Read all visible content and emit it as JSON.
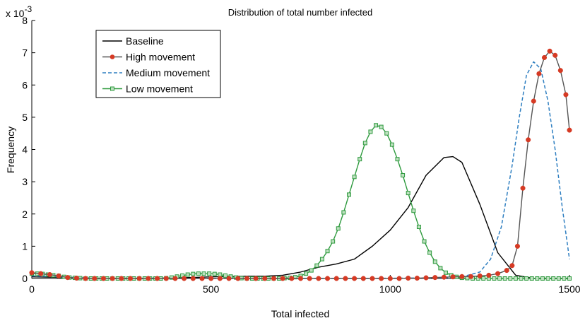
{
  "chart_data": {
    "type": "line",
    "title": "Distribution of total number infected",
    "xlabel": "Total infected",
    "ylabel": "Frequency",
    "y_multiplier_label": "x 10",
    "y_multiplier_exponent": "-3",
    "xlim": [
      0,
      1500
    ],
    "ylim": [
      0,
      8
    ],
    "xticks": [
      0,
      500,
      1000,
      1500
    ],
    "yticks": [
      0,
      1,
      2,
      3,
      4,
      5,
      6,
      7,
      8
    ],
    "grid": false,
    "legend_position": "top-left",
    "series": [
      {
        "name": "Baseline",
        "color": "#000000",
        "style": "solid",
        "marker": "none",
        "points": [
          [
            0,
            0.05
          ],
          [
            50,
            0.04
          ],
          [
            100,
            0.03
          ],
          [
            150,
            0.01
          ],
          [
            200,
            0.0
          ],
          [
            300,
            0.0
          ],
          [
            400,
            0.02
          ],
          [
            450,
            0.03
          ],
          [
            500,
            0.05
          ],
          [
            550,
            0.06
          ],
          [
            600,
            0.07
          ],
          [
            650,
            0.07
          ],
          [
            700,
            0.1
          ],
          [
            750,
            0.2
          ],
          [
            800,
            0.35
          ],
          [
            850,
            0.45
          ],
          [
            900,
            0.6
          ],
          [
            950,
            1.0
          ],
          [
            1000,
            1.5
          ],
          [
            1050,
            2.2
          ],
          [
            1100,
            3.2
          ],
          [
            1150,
            3.75
          ],
          [
            1175,
            3.78
          ],
          [
            1200,
            3.6
          ],
          [
            1250,
            2.3
          ],
          [
            1300,
            0.8
          ],
          [
            1350,
            0.1
          ],
          [
            1400,
            0.0
          ],
          [
            1500,
            0.0
          ]
        ]
      },
      {
        "name": "High movement",
        "color": "#d63a24",
        "line_color": "#555555",
        "style": "solid",
        "marker": "circle",
        "points": [
          [
            0,
            0.18
          ],
          [
            25,
            0.15
          ],
          [
            50,
            0.12
          ],
          [
            75,
            0.08
          ],
          [
            100,
            0.03
          ],
          [
            125,
            0.01
          ],
          [
            150,
            0.0
          ],
          [
            175,
            0.0
          ],
          [
            200,
            0.0
          ],
          [
            225,
            0.0
          ],
          [
            250,
            0.0
          ],
          [
            275,
            0.0
          ],
          [
            300,
            0.0
          ],
          [
            325,
            0.0
          ],
          [
            350,
            0.0
          ],
          [
            375,
            0.0
          ],
          [
            400,
            0.0
          ],
          [
            425,
            0.0
          ],
          [
            450,
            0.0
          ],
          [
            475,
            0.0
          ],
          [
            500,
            0.0
          ],
          [
            525,
            0.0
          ],
          [
            550,
            0.0
          ],
          [
            575,
            0.0
          ],
          [
            600,
            0.0
          ],
          [
            625,
            0.0
          ],
          [
            650,
            0.0
          ],
          [
            675,
            0.0
          ],
          [
            700,
            0.0
          ],
          [
            725,
            0.0
          ],
          [
            750,
            0.0
          ],
          [
            775,
            0.0
          ],
          [
            800,
            0.0
          ],
          [
            825,
            0.0
          ],
          [
            850,
            0.0
          ],
          [
            875,
            0.0
          ],
          [
            900,
            0.0
          ],
          [
            925,
            0.0
          ],
          [
            950,
            0.0
          ],
          [
            975,
            0.0
          ],
          [
            1000,
            0.0
          ],
          [
            1025,
            0.0
          ],
          [
            1050,
            0.01
          ],
          [
            1075,
            0.01
          ],
          [
            1100,
            0.02
          ],
          [
            1125,
            0.03
          ],
          [
            1150,
            0.04
          ],
          [
            1175,
            0.05
          ],
          [
            1200,
            0.06
          ],
          [
            1225,
            0.06
          ],
          [
            1250,
            0.08
          ],
          [
            1275,
            0.1
          ],
          [
            1300,
            0.15
          ],
          [
            1325,
            0.25
          ],
          [
            1340,
            0.4
          ],
          [
            1355,
            1.0
          ],
          [
            1370,
            2.8
          ],
          [
            1385,
            4.3
          ],
          [
            1400,
            5.5
          ],
          [
            1415,
            6.35
          ],
          [
            1430,
            6.85
          ],
          [
            1445,
            7.05
          ],
          [
            1460,
            6.92
          ],
          [
            1475,
            6.45
          ],
          [
            1490,
            5.7
          ],
          [
            1500,
            4.6
          ]
        ]
      },
      {
        "name": "Medium movement",
        "color": "#2f7fc1",
        "style": "dashed",
        "marker": "none",
        "points": [
          [
            0,
            0.08
          ],
          [
            100,
            0.04
          ],
          [
            200,
            0.01
          ],
          [
            300,
            0.0
          ],
          [
            600,
            0.0
          ],
          [
            900,
            0.0
          ],
          [
            1150,
            0.02
          ],
          [
            1200,
            0.05
          ],
          [
            1250,
            0.2
          ],
          [
            1280,
            0.6
          ],
          [
            1310,
            1.6
          ],
          [
            1340,
            3.5
          ],
          [
            1360,
            5.0
          ],
          [
            1380,
            6.3
          ],
          [
            1400,
            6.72
          ],
          [
            1420,
            6.5
          ],
          [
            1440,
            5.5
          ],
          [
            1460,
            4.0
          ],
          [
            1480,
            2.2
          ],
          [
            1500,
            0.6
          ]
        ]
      },
      {
        "name": "Low movement",
        "color": "#2e9a3e",
        "style": "solid",
        "marker": "square",
        "points": [
          [
            0,
            0.15
          ],
          [
            15,
            0.15
          ],
          [
            30,
            0.14
          ],
          [
            45,
            0.12
          ],
          [
            60,
            0.1
          ],
          [
            75,
            0.08
          ],
          [
            90,
            0.05
          ],
          [
            105,
            0.03
          ],
          [
            120,
            0.02
          ],
          [
            135,
            0.01
          ],
          [
            150,
            0.0
          ],
          [
            165,
            0.0
          ],
          [
            180,
            0.0
          ],
          [
            195,
            0.0
          ],
          [
            210,
            0.0
          ],
          [
            225,
            0.0
          ],
          [
            240,
            0.0
          ],
          [
            255,
            0.0
          ],
          [
            270,
            0.0
          ],
          [
            285,
            0.0
          ],
          [
            300,
            0.0
          ],
          [
            315,
            0.0
          ],
          [
            330,
            0.0
          ],
          [
            345,
            0.0
          ],
          [
            360,
            0.0
          ],
          [
            375,
            0.01
          ],
          [
            390,
            0.03
          ],
          [
            405,
            0.06
          ],
          [
            420,
            0.09
          ],
          [
            435,
            0.12
          ],
          [
            450,
            0.14
          ],
          [
            465,
            0.15
          ],
          [
            480,
            0.15
          ],
          [
            495,
            0.15
          ],
          [
            510,
            0.14
          ],
          [
            525,
            0.12
          ],
          [
            540,
            0.09
          ],
          [
            555,
            0.06
          ],
          [
            570,
            0.03
          ],
          [
            585,
            0.01
          ],
          [
            600,
            0.0
          ],
          [
            615,
            0.0
          ],
          [
            630,
            0.0
          ],
          [
            645,
            0.0
          ],
          [
            660,
            0.0
          ],
          [
            675,
            0.0
          ],
          [
            690,
            0.0
          ],
          [
            705,
            0.01
          ],
          [
            720,
            0.02
          ],
          [
            735,
            0.04
          ],
          [
            750,
            0.08
          ],
          [
            765,
            0.15
          ],
          [
            780,
            0.25
          ],
          [
            795,
            0.4
          ],
          [
            810,
            0.6
          ],
          [
            825,
            0.85
          ],
          [
            840,
            1.15
          ],
          [
            855,
            1.55
          ],
          [
            870,
            2.05
          ],
          [
            885,
            2.6
          ],
          [
            900,
            3.15
          ],
          [
            915,
            3.7
          ],
          [
            930,
            4.2
          ],
          [
            945,
            4.55
          ],
          [
            960,
            4.75
          ],
          [
            975,
            4.7
          ],
          [
            990,
            4.5
          ],
          [
            1005,
            4.15
          ],
          [
            1020,
            3.7
          ],
          [
            1035,
            3.2
          ],
          [
            1050,
            2.65
          ],
          [
            1065,
            2.1
          ],
          [
            1080,
            1.6
          ],
          [
            1095,
            1.15
          ],
          [
            1110,
            0.8
          ],
          [
            1125,
            0.52
          ],
          [
            1140,
            0.32
          ],
          [
            1155,
            0.18
          ],
          [
            1170,
            0.1
          ],
          [
            1185,
            0.05
          ],
          [
            1200,
            0.02
          ],
          [
            1215,
            0.01
          ],
          [
            1230,
            0.0
          ],
          [
            1245,
            0.0
          ],
          [
            1260,
            0.0
          ],
          [
            1275,
            0.0
          ],
          [
            1290,
            0.0
          ],
          [
            1305,
            0.0
          ],
          [
            1320,
            0.0
          ],
          [
            1335,
            0.0
          ],
          [
            1350,
            0.0
          ],
          [
            1365,
            0.0
          ],
          [
            1380,
            0.0
          ],
          [
            1395,
            0.0
          ],
          [
            1410,
            0.0
          ],
          [
            1425,
            0.0
          ],
          [
            1440,
            0.0
          ],
          [
            1455,
            0.0
          ],
          [
            1470,
            0.0
          ],
          [
            1485,
            0.0
          ],
          [
            1500,
            0.0
          ]
        ]
      }
    ]
  }
}
